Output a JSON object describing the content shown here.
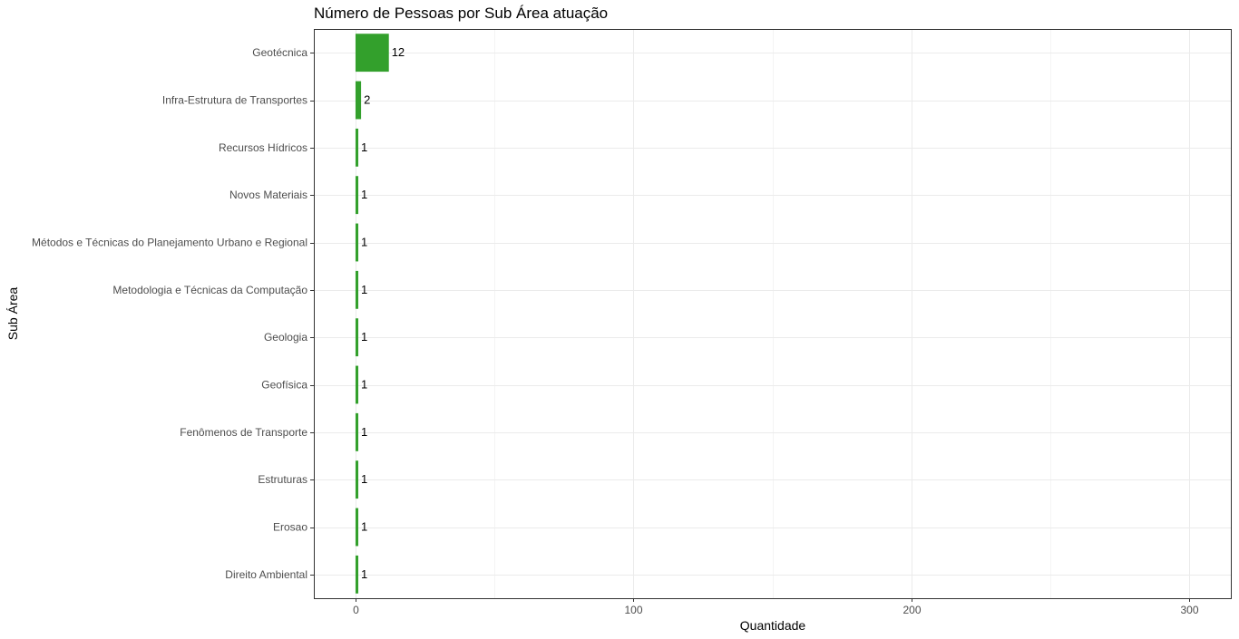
{
  "chart_data": {
    "type": "bar",
    "orientation": "horizontal",
    "title": "Número de Pessoas por Sub Área atuação",
    "xlabel": "Quantidade",
    "ylabel": "Sub Área",
    "xlim": [
      -15,
      315
    ],
    "xticks": [
      0,
      100,
      200,
      300
    ],
    "grid": true,
    "bar_color": "#33a02c",
    "categories": [
      "Geotécnica",
      "Infra-Estrutura de Transportes",
      "Recursos Hídricos",
      "Novos Materiais",
      "Métodos e Técnicas do Planejamento Urbano e Regional",
      "Metodologia e Técnicas da Computação",
      "Geologia",
      "Geofísica",
      "Fenômenos de Transporte",
      "Estruturas",
      "Erosao",
      "Direito Ambiental"
    ],
    "values": [
      12,
      2,
      1,
      1,
      1,
      1,
      1,
      1,
      1,
      1,
      1,
      1
    ]
  }
}
